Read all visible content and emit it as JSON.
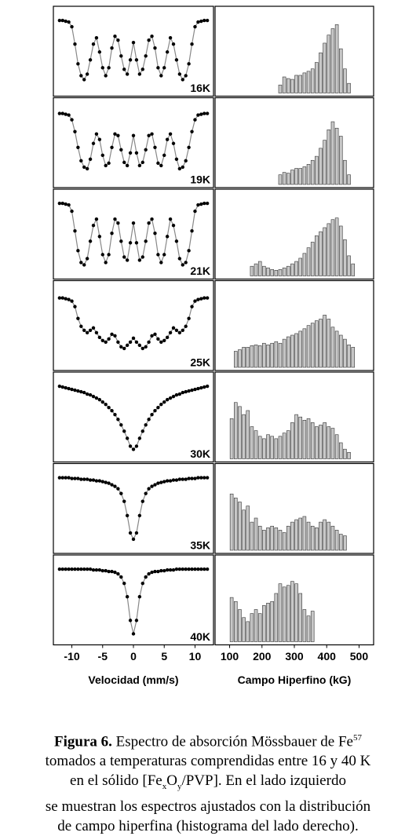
{
  "chart_data": [
    {
      "type": "scatter",
      "label": "16K",
      "xlim": [
        -13,
        13
      ],
      "ylim": [
        0,
        1
      ],
      "x": [
        -12,
        -11.5,
        -11,
        -10.5,
        -10,
        -9.5,
        -9,
        -8.5,
        -8,
        -7.5,
        -7,
        -6.5,
        -6,
        -5.5,
        -5,
        -4.5,
        -4,
        -3.5,
        -3,
        -2.5,
        -2,
        -1.5,
        -1,
        -0.5,
        0,
        0.5,
        1,
        1.5,
        2,
        2.5,
        3,
        3.5,
        4,
        4.5,
        5,
        5.5,
        6,
        6.5,
        7,
        7.5,
        8,
        8.5,
        9,
        9.5,
        10,
        10.5,
        11,
        11.5,
        12
      ],
      "values": [
        0.9,
        0.9,
        0.89,
        0.88,
        0.82,
        0.6,
        0.35,
        0.2,
        0.15,
        0.22,
        0.4,
        0.6,
        0.68,
        0.5,
        0.3,
        0.2,
        0.3,
        0.55,
        0.7,
        0.65,
        0.45,
        0.28,
        0.22,
        0.4,
        0.62,
        0.4,
        0.22,
        0.28,
        0.45,
        0.65,
        0.7,
        0.55,
        0.3,
        0.2,
        0.3,
        0.5,
        0.68,
        0.6,
        0.4,
        0.22,
        0.15,
        0.2,
        0.35,
        0.6,
        0.82,
        0.88,
        0.89,
        0.9,
        0.9
      ]
    },
    {
      "type": "scatter",
      "label": "19K",
      "xlim": [
        -13,
        13
      ],
      "ylim": [
        0,
        1
      ],
      "x": [
        -12,
        -11.5,
        -11,
        -10.5,
        -10,
        -9.5,
        -9,
        -8.5,
        -8,
        -7.5,
        -7,
        -6.5,
        -6,
        -5.5,
        -5,
        -4.5,
        -4,
        -3.5,
        -3,
        -2.5,
        -2,
        -1.5,
        -1,
        -0.5,
        0,
        0.5,
        1,
        1.5,
        2,
        2.5,
        3,
        3.5,
        4,
        4.5,
        5,
        5.5,
        6,
        6.5,
        7,
        7.5,
        8,
        8.5,
        9,
        9.5,
        10,
        10.5,
        11,
        11.5,
        12
      ],
      "values": [
        0.88,
        0.88,
        0.87,
        0.86,
        0.8,
        0.65,
        0.45,
        0.28,
        0.2,
        0.18,
        0.3,
        0.5,
        0.62,
        0.55,
        0.35,
        0.22,
        0.25,
        0.45,
        0.62,
        0.6,
        0.42,
        0.26,
        0.22,
        0.38,
        0.6,
        0.38,
        0.22,
        0.26,
        0.42,
        0.6,
        0.62,
        0.45,
        0.25,
        0.22,
        0.35,
        0.55,
        0.62,
        0.5,
        0.3,
        0.18,
        0.2,
        0.28,
        0.45,
        0.65,
        0.8,
        0.86,
        0.87,
        0.88,
        0.88
      ]
    },
    {
      "type": "scatter",
      "label": "21K",
      "xlim": [
        -13,
        13
      ],
      "ylim": [
        0,
        1
      ],
      "x": [
        -12,
        -11.5,
        -11,
        -10.5,
        -10,
        -9.5,
        -9,
        -8.5,
        -8,
        -7.5,
        -7,
        -6.5,
        -6,
        -5.5,
        -5,
        -4.5,
        -4,
        -3.5,
        -3,
        -2.5,
        -2,
        -1.5,
        -1,
        -0.5,
        0,
        0.5,
        1,
        1.5,
        2,
        2.5,
        3,
        3.5,
        4,
        4.5,
        5,
        5.5,
        6,
        6.5,
        7,
        7.5,
        8,
        8.5,
        9,
        9.5,
        10,
        10.5,
        11,
        11.5,
        12
      ],
      "values": [
        0.9,
        0.9,
        0.89,
        0.88,
        0.8,
        0.55,
        0.3,
        0.15,
        0.12,
        0.2,
        0.42,
        0.62,
        0.7,
        0.48,
        0.25,
        0.15,
        0.25,
        0.52,
        0.7,
        0.65,
        0.42,
        0.22,
        0.18,
        0.4,
        0.65,
        0.4,
        0.18,
        0.22,
        0.42,
        0.65,
        0.7,
        0.52,
        0.25,
        0.15,
        0.25,
        0.48,
        0.7,
        0.62,
        0.42,
        0.2,
        0.12,
        0.15,
        0.3,
        0.55,
        0.8,
        0.88,
        0.89,
        0.9,
        0.9
      ]
    },
    {
      "type": "scatter",
      "label": "25K",
      "xlim": [
        -13,
        13
      ],
      "ylim": [
        0,
        1
      ],
      "x": [
        -12,
        -11.5,
        -11,
        -10.5,
        -10,
        -9.5,
        -9,
        -8.5,
        -8,
        -7.5,
        -7,
        -6.5,
        -6,
        -5.5,
        -5,
        -4.5,
        -4,
        -3.5,
        -3,
        -2.5,
        -2,
        -1.5,
        -1,
        -0.5,
        0,
        0.5,
        1,
        1.5,
        2,
        2.5,
        3,
        3.5,
        4,
        4.5,
        5,
        5.5,
        6,
        6.5,
        7,
        7.5,
        8,
        8.5,
        9,
        9.5,
        10,
        10.5,
        11,
        11.5,
        12
      ],
      "values": [
        0.86,
        0.86,
        0.85,
        0.84,
        0.82,
        0.75,
        0.6,
        0.5,
        0.45,
        0.42,
        0.45,
        0.48,
        0.42,
        0.36,
        0.32,
        0.3,
        0.34,
        0.4,
        0.38,
        0.3,
        0.24,
        0.22,
        0.26,
        0.3,
        0.35,
        0.3,
        0.26,
        0.22,
        0.24,
        0.3,
        0.38,
        0.4,
        0.34,
        0.3,
        0.32,
        0.36,
        0.42,
        0.48,
        0.45,
        0.42,
        0.45,
        0.5,
        0.6,
        0.75,
        0.82,
        0.84,
        0.85,
        0.86,
        0.86
      ]
    },
    {
      "type": "scatter",
      "label": "30K",
      "xlim": [
        -13,
        13
      ],
      "ylim": [
        0,
        1
      ],
      "x": [
        -12,
        -11.5,
        -11,
        -10.5,
        -10,
        -9.5,
        -9,
        -8.5,
        -8,
        -7.5,
        -7,
        -6.5,
        -6,
        -5.5,
        -5,
        -4.5,
        -4,
        -3.5,
        -3,
        -2.5,
        -2,
        -1.5,
        -1,
        -0.5,
        0,
        0.5,
        1,
        1.5,
        2,
        2.5,
        3,
        3.5,
        4,
        4.5,
        5,
        5.5,
        6,
        6.5,
        7,
        7.5,
        8,
        8.5,
        9,
        9.5,
        10,
        10.5,
        11,
        11.5,
        12
      ],
      "values": [
        0.9,
        0.89,
        0.88,
        0.87,
        0.86,
        0.85,
        0.84,
        0.83,
        0.82,
        0.8,
        0.79,
        0.77,
        0.75,
        0.73,
        0.7,
        0.67,
        0.63,
        0.59,
        0.54,
        0.48,
        0.41,
        0.33,
        0.24,
        0.14,
        0.1,
        0.14,
        0.24,
        0.33,
        0.41,
        0.48,
        0.54,
        0.59,
        0.63,
        0.67,
        0.7,
        0.73,
        0.75,
        0.77,
        0.79,
        0.8,
        0.82,
        0.83,
        0.84,
        0.85,
        0.86,
        0.87,
        0.88,
        0.89,
        0.9
      ]
    },
    {
      "type": "scatter",
      "label": "35K",
      "xlim": [
        -13,
        13
      ],
      "ylim": [
        0,
        1
      ],
      "x": [
        -12,
        -11.5,
        -11,
        -10.5,
        -10,
        -9.5,
        -9,
        -8.5,
        -8,
        -7.5,
        -7,
        -6.5,
        -6,
        -5.5,
        -5,
        -4.5,
        -4,
        -3.5,
        -3,
        -2.5,
        -2,
        -1.5,
        -1,
        -0.5,
        0,
        0.5,
        1,
        1.5,
        2,
        2.5,
        3,
        3.5,
        4,
        4.5,
        5,
        5.5,
        6,
        6.5,
        7,
        7.5,
        8,
        8.5,
        9,
        9.5,
        10,
        10.5,
        11,
        11.5,
        12
      ],
      "values": [
        0.9,
        0.9,
        0.9,
        0.9,
        0.89,
        0.89,
        0.89,
        0.88,
        0.88,
        0.88,
        0.87,
        0.87,
        0.86,
        0.86,
        0.85,
        0.84,
        0.83,
        0.81,
        0.79,
        0.76,
        0.7,
        0.6,
        0.42,
        0.2,
        0.12,
        0.2,
        0.42,
        0.6,
        0.7,
        0.76,
        0.79,
        0.81,
        0.83,
        0.84,
        0.85,
        0.86,
        0.86,
        0.87,
        0.87,
        0.88,
        0.88,
        0.88,
        0.89,
        0.89,
        0.89,
        0.9,
        0.9,
        0.9,
        0.9
      ]
    },
    {
      "type": "scatter",
      "label": "40K",
      "xlim": [
        -13,
        13
      ],
      "ylim": [
        0,
        1
      ],
      "xticks": [
        -10,
        -5,
        0,
        5,
        10
      ],
      "xlabel": "Velocidad (mm/s)",
      "x": [
        -12,
        -11.5,
        -11,
        -10.5,
        -10,
        -9.5,
        -9,
        -8.5,
        -8,
        -7.5,
        -7,
        -6.5,
        -6,
        -5.5,
        -5,
        -4.5,
        -4,
        -3.5,
        -3,
        -2.5,
        -2,
        -1.5,
        -1,
        -0.5,
        0,
        0.5,
        1,
        1.5,
        2,
        2.5,
        3,
        3.5,
        4,
        4.5,
        5,
        5.5,
        6,
        6.5,
        7,
        7.5,
        8,
        8.5,
        9,
        9.5,
        10,
        10.5,
        11,
        11.5,
        12
      ],
      "values": [
        0.9,
        0.9,
        0.9,
        0.9,
        0.9,
        0.9,
        0.9,
        0.9,
        0.9,
        0.9,
        0.9,
        0.89,
        0.89,
        0.89,
        0.88,
        0.88,
        0.87,
        0.87,
        0.86,
        0.84,
        0.8,
        0.72,
        0.55,
        0.25,
        0.08,
        0.25,
        0.55,
        0.72,
        0.8,
        0.84,
        0.86,
        0.87,
        0.87,
        0.88,
        0.88,
        0.89,
        0.89,
        0.89,
        0.9,
        0.9,
        0.9,
        0.9,
        0.9,
        0.9,
        0.9,
        0.9,
        0.9,
        0.9,
        0.9
      ]
    },
    {
      "type": "histogram",
      "xlim": [
        55,
        545
      ],
      "ylim": [
        0,
        100
      ],
      "bins": [
        100,
        112.5,
        125,
        137.5,
        150,
        162.5,
        175,
        187.5,
        200,
        212.5,
        225,
        237.5,
        250,
        262.5,
        275,
        287.5,
        300,
        312.5,
        325,
        337.5,
        350,
        362.5,
        375,
        387.5,
        400,
        412.5,
        425,
        437.5,
        450,
        462.5,
        475,
        487.5,
        500
      ],
      "counts": [
        0,
        0,
        0,
        0,
        0,
        0,
        0,
        0,
        0,
        0,
        0,
        0,
        10,
        20,
        18,
        17,
        22,
        22,
        25,
        27,
        30,
        38,
        50,
        62,
        72,
        80,
        85,
        55,
        30,
        12,
        0,
        0
      ]
    },
    {
      "type": "histogram",
      "xlim": [
        55,
        545
      ],
      "ylim": [
        0,
        100
      ],
      "bins": [
        100,
        112.5,
        125,
        137.5,
        150,
        162.5,
        175,
        187.5,
        200,
        212.5,
        225,
        237.5,
        250,
        262.5,
        275,
        287.5,
        300,
        312.5,
        325,
        337.5,
        350,
        362.5,
        375,
        387.5,
        400,
        412.5,
        425,
        437.5,
        450,
        462.5,
        475,
        487.5,
        500
      ],
      "counts": [
        0,
        0,
        0,
        0,
        0,
        0,
        0,
        0,
        0,
        0,
        0,
        0,
        12,
        15,
        14,
        18,
        20,
        20,
        22,
        25,
        30,
        35,
        45,
        55,
        68,
        78,
        70,
        60,
        30,
        12,
        0,
        0
      ]
    },
    {
      "type": "histogram",
      "xlim": [
        55,
        545
      ],
      "ylim": [
        0,
        100
      ],
      "bins": [
        100,
        112.5,
        125,
        137.5,
        150,
        162.5,
        175,
        187.5,
        200,
        212.5,
        225,
        237.5,
        250,
        262.5,
        275,
        287.5,
        300,
        312.5,
        325,
        337.5,
        350,
        362.5,
        375,
        387.5,
        400,
        412.5,
        425,
        437.5,
        450,
        462.5,
        475,
        487.5,
        500
      ],
      "counts": [
        0,
        0,
        0,
        0,
        0,
        12,
        15,
        18,
        12,
        10,
        8,
        7,
        8,
        10,
        12,
        15,
        18,
        22,
        28,
        35,
        42,
        50,
        55,
        60,
        65,
        70,
        72,
        62,
        45,
        25,
        15,
        0
      ]
    },
    {
      "type": "histogram",
      "xlim": [
        55,
        545
      ],
      "ylim": [
        0,
        100
      ],
      "bins": [
        100,
        112.5,
        125,
        137.5,
        150,
        162.5,
        175,
        187.5,
        200,
        212.5,
        225,
        237.5,
        250,
        262.5,
        275,
        287.5,
        300,
        312.5,
        325,
        337.5,
        350,
        362.5,
        375,
        387.5,
        400,
        412.5,
        425,
        437.5,
        450,
        462.5,
        475,
        487.5,
        500
      ],
      "counts": [
        0,
        20,
        22,
        25,
        25,
        27,
        28,
        27,
        30,
        28,
        30,
        32,
        30,
        35,
        38,
        40,
        42,
        45,
        48,
        52,
        55,
        58,
        60,
        65,
        60,
        50,
        45,
        40,
        35,
        28,
        25,
        0
      ]
    },
    {
      "type": "histogram",
      "xlim": [
        55,
        545
      ],
      "ylim": [
        0,
        100
      ],
      "bins": [
        100,
        112.5,
        125,
        137.5,
        150,
        162.5,
        175,
        187.5,
        200,
        212.5,
        225,
        237.5,
        250,
        262.5,
        275,
        287.5,
        300,
        312.5,
        325,
        337.5,
        350,
        362.5,
        375,
        387.5,
        400,
        412.5,
        425,
        437.5,
        450,
        462.5,
        475,
        487.5,
        500
      ],
      "counts": [
        50,
        70,
        65,
        55,
        60,
        40,
        35,
        28,
        25,
        30,
        28,
        25,
        28,
        32,
        35,
        45,
        55,
        52,
        48,
        50,
        45,
        40,
        42,
        45,
        40,
        38,
        30,
        20,
        12,
        8,
        0,
        0
      ]
    },
    {
      "type": "histogram",
      "xlim": [
        55,
        545
      ],
      "ylim": [
        0,
        100
      ],
      "bins": [
        100,
        112.5,
        125,
        137.5,
        150,
        162.5,
        175,
        187.5,
        200,
        212.5,
        225,
        237.5,
        250,
        262.5,
        275,
        287.5,
        300,
        312.5,
        325,
        337.5,
        350,
        362.5,
        375,
        387.5,
        400,
        412.5,
        425,
        437.5,
        450,
        462.5,
        475,
        487.5,
        500
      ],
      "counts": [
        70,
        65,
        60,
        50,
        55,
        35,
        40,
        30,
        25,
        28,
        30,
        28,
        25,
        22,
        30,
        35,
        38,
        40,
        42,
        35,
        30,
        28,
        35,
        38,
        35,
        30,
        25,
        20,
        18,
        0,
        0,
        0
      ]
    },
    {
      "type": "histogram",
      "xlim": [
        55,
        545
      ],
      "ylim": [
        0,
        100
      ],
      "xticks": [
        100,
        200,
        300,
        400,
        500
      ],
      "xlabel": "Campo Hiperfino (kG)",
      "bins": [
        100,
        112.5,
        125,
        137.5,
        150,
        162.5,
        175,
        187.5,
        200,
        212.5,
        225,
        237.5,
        250,
        262.5,
        275,
        287.5,
        300,
        312.5,
        325,
        337.5,
        350,
        362.5,
        375,
        387.5,
        400,
        412.5,
        425,
        437.5,
        450,
        462.5,
        475,
        487.5,
        500
      ],
      "counts": [
        55,
        50,
        40,
        30,
        25,
        35,
        40,
        35,
        45,
        48,
        50,
        60,
        72,
        68,
        70,
        75,
        72,
        60,
        40,
        32,
        38,
        0,
        0,
        0,
        0,
        0,
        0,
        0,
        0,
        0,
        0,
        0
      ]
    }
  ],
  "caption": {
    "label": "Figura 6.",
    "line1": "Espectro de absorción Mössbauer de Fe",
    "sup": "57",
    "line2": "tomados a temperaturas comprendidas entre 16 y 40 K",
    "line3a": "en el sólido [Fe",
    "sub1": "x",
    "line3b": "O",
    "sub2": "y",
    "line3c": "/PVP]. En el lado izquierdo",
    "line4": "se muestran los espectros ajustados con la distribución",
    "line5": "de campo hiperfina (histograma del lado derecho)."
  }
}
